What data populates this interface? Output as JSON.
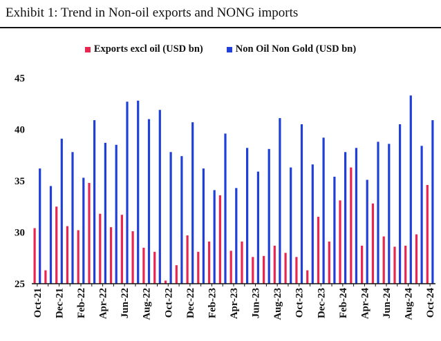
{
  "header": {
    "title": "Exhibit 1: Trend in Non-oil exports and NONG imports"
  },
  "chart_data": {
    "type": "bar",
    "categories": [
      "Oct-21",
      "Nov-21",
      "Dec-21",
      "Jan-22",
      "Feb-22",
      "Mar-22",
      "Apr-22",
      "May-22",
      "Jun-22",
      "Jul-22",
      "Aug-22",
      "Sep-22",
      "Oct-22",
      "Nov-22",
      "Dec-22",
      "Jan-23",
      "Feb-23",
      "Mar-23",
      "Apr-23",
      "May-23",
      "Jun-23",
      "Jul-23",
      "Aug-23",
      "Sep-23",
      "Oct-23",
      "Nov-23",
      "Dec-23",
      "Jan-24",
      "Feb-24",
      "Mar-24",
      "Apr-24",
      "May-24",
      "Jun-24",
      "Jul-24",
      "Aug-24",
      "Sep-24",
      "Oct-24"
    ],
    "tick_labels": [
      "Oct-21",
      "",
      "Dec-21",
      "",
      "Feb-22",
      "",
      "Apr-22",
      "",
      "Jun-22",
      "",
      "Aug-22",
      "",
      "Oct-22",
      "",
      "Dec-22",
      "",
      "Feb-23",
      "",
      "Apr-23",
      "",
      "Jun-23",
      "",
      "Aug-23",
      "",
      "Oct-23",
      "",
      "Dec-23",
      "",
      "Feb-24",
      "",
      "Apr-24",
      "",
      "Jun-24",
      "",
      "Aug-24",
      "",
      "Oct-24"
    ],
    "series": [
      {
        "name": "Exports excl oil (USD bn)",
        "color": "#e8264f",
        "values": [
          30.4,
          26.3,
          32.5,
          30.6,
          30.2,
          34.8,
          31.8,
          30.5,
          31.7,
          30.1,
          28.5,
          28.1,
          25.3,
          26.8,
          29.7,
          28.1,
          29.1,
          33.6,
          28.2,
          29.1,
          27.6,
          27.7,
          28.7,
          28.0,
          27.6,
          26.3,
          31.5,
          29.1,
          33.1,
          36.3,
          28.7,
          32.8,
          29.6,
          28.6,
          28.7,
          29.8,
          34.6
        ]
      },
      {
        "name": "Non Oil Non Gold (USD bn)",
        "color": "#1f3fd8",
        "values": [
          36.2,
          34.5,
          39.1,
          37.8,
          35.3,
          40.9,
          38.7,
          38.5,
          42.7,
          42.8,
          41.0,
          41.9,
          37.8,
          37.4,
          40.7,
          36.2,
          34.1,
          39.6,
          34.3,
          38.2,
          35.9,
          38.1,
          41.1,
          36.3,
          40.5,
          36.6,
          39.2,
          35.4,
          37.8,
          38.2,
          35.1,
          38.8,
          38.6,
          40.5,
          43.3,
          38.4,
          40.9
        ]
      }
    ],
    "yticks": [
      25,
      30,
      35,
      40,
      45
    ],
    "ylim": [
      25,
      45
    ],
    "legend_position": "top-center"
  }
}
